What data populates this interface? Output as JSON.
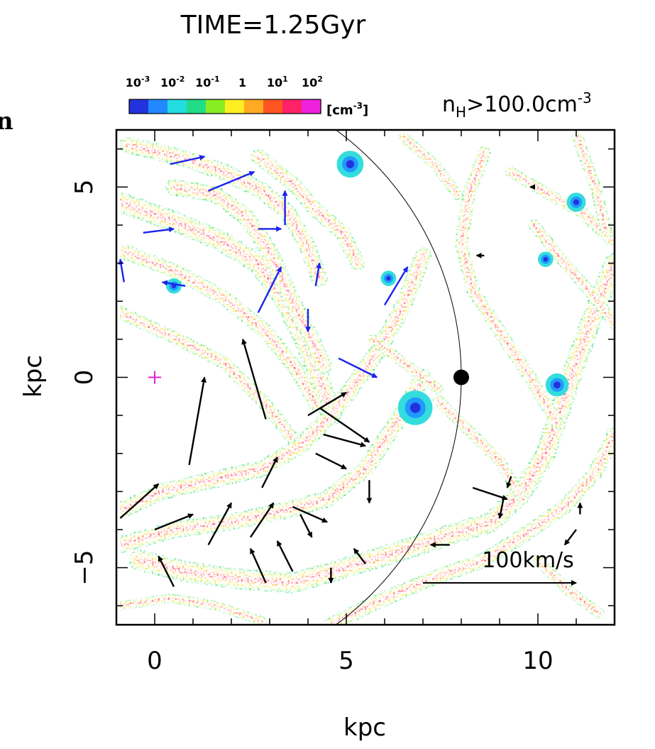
{
  "header": {
    "time_label": "TIME=1.25Gyr",
    "threshold_main": "n",
    "threshold_sub": "H",
    "threshold_rest": ">100.0cm",
    "threshold_sup": "-3",
    "left_edge_mark": "n"
  },
  "colorbar": {
    "unit_label": "[cm",
    "unit_sup": "-3",
    "unit_close": "]",
    "ticks": [
      {
        "value": -3,
        "base": "10",
        "exp": "-3"
      },
      {
        "value": -2,
        "base": "10",
        "exp": "-2"
      },
      {
        "value": -1,
        "base": "10",
        "exp": "-1"
      },
      {
        "value": 0,
        "base": "1",
        "exp": ""
      },
      {
        "value": 1,
        "base": "10",
        "exp": "1"
      },
      {
        "value": 2,
        "base": "10",
        "exp": "2"
      }
    ],
    "colors": [
      "#2233dd",
      "#2288ff",
      "#22dddd",
      "#22dd88",
      "#88ee22",
      "#ffee22",
      "#ffaa22",
      "#ff5522",
      "#ff2266",
      "#ee22dd"
    ]
  },
  "chart_data": {
    "type": "scatter",
    "description_type": "gas density map with velocity vectors",
    "xlabel": "kpc",
    "ylabel": "kpc",
    "xlim": [
      -1,
      12
    ],
    "ylim": [
      -6.5,
      6.5
    ],
    "xticks": [
      0,
      5,
      10
    ],
    "yticks": [
      5,
      0,
      -5
    ],
    "xtick_labels": [
      "0",
      "5",
      "10"
    ],
    "ytick_labels": [
      "5",
      "0",
      "−5"
    ],
    "sun_marker": {
      "x": 8,
      "y": 0
    },
    "solar_circle_radius": 8,
    "plus_marker": {
      "x": 0,
      "y": 0
    },
    "scale_arrow": {
      "label": "100km/s",
      "x0": 7,
      "x1": 11,
      "y": -5.4
    },
    "velocity_arrows": [
      {
        "x": 0.4,
        "y": 5.6,
        "dx": 0.9,
        "dy": 0.2,
        "color": "blue"
      },
      {
        "x": 1.4,
        "y": 4.9,
        "dx": 1.2,
        "dy": 0.5,
        "color": "blue"
      },
      {
        "x": -0.3,
        "y": 3.8,
        "dx": 0.8,
        "dy": 0.1,
        "color": "blue"
      },
      {
        "x": 2.7,
        "y": 3.9,
        "dx": 0.6,
        "dy": 0.0,
        "color": "blue"
      },
      {
        "x": 3.4,
        "y": 4.0,
        "dx": 0.0,
        "dy": 0.9,
        "color": "blue"
      },
      {
        "x": 0.8,
        "y": 2.4,
        "dx": -0.6,
        "dy": 0.1,
        "color": "blue"
      },
      {
        "x": 2.7,
        "y": 1.7,
        "dx": 0.6,
        "dy": 1.2,
        "color": "blue"
      },
      {
        "x": 4.2,
        "y": 2.4,
        "dx": 0.1,
        "dy": 0.6,
        "color": "blue"
      },
      {
        "x": 4.0,
        "y": 1.8,
        "dx": 0.0,
        "dy": -0.6,
        "color": "blue"
      },
      {
        "x": 4.8,
        "y": 0.5,
        "dx": 1.0,
        "dy": -0.5,
        "color": "blue"
      },
      {
        "x": 6.0,
        "y": 1.9,
        "dx": 0.6,
        "dy": 1.0,
        "color": "blue"
      },
      {
        "x": 2.9,
        "y": -1.1,
        "dx": -0.6,
        "dy": 2.1,
        "color": "black"
      },
      {
        "x": 0.9,
        "y": -2.3,
        "dx": 0.4,
        "dy": 2.3,
        "color": "black"
      },
      {
        "x": 4.0,
        "y": -1.0,
        "dx": 1.0,
        "dy": 0.6,
        "color": "black"
      },
      {
        "x": 4.3,
        "y": -0.8,
        "dx": 1.3,
        "dy": -0.9,
        "color": "black"
      },
      {
        "x": 4.4,
        "y": -1.5,
        "dx": 1.1,
        "dy": -0.3,
        "color": "black"
      },
      {
        "x": 4.2,
        "y": -2.0,
        "dx": 0.8,
        "dy": -0.4,
        "color": "black"
      },
      {
        "x": 2.8,
        "y": -2.9,
        "dx": 0.4,
        "dy": 0.8,
        "color": "black"
      },
      {
        "x": -0.9,
        "y": -3.7,
        "dx": 1.0,
        "dy": 0.9,
        "color": "black"
      },
      {
        "x": 0.0,
        "y": -4.0,
        "dx": 1.0,
        "dy": 0.4,
        "color": "black"
      },
      {
        "x": 1.4,
        "y": -4.4,
        "dx": 0.6,
        "dy": 1.1,
        "color": "black"
      },
      {
        "x": 2.5,
        "y": -4.2,
        "dx": 0.6,
        "dy": 0.9,
        "color": "black"
      },
      {
        "x": 3.6,
        "y": -3.4,
        "dx": 0.9,
        "dy": -0.4,
        "color": "black"
      },
      {
        "x": 3.8,
        "y": -3.6,
        "dx": 0.3,
        "dy": -0.6,
        "color": "black"
      },
      {
        "x": 0.5,
        "y": -5.5,
        "dx": -0.4,
        "dy": 0.8,
        "color": "black"
      },
      {
        "x": 2.9,
        "y": -5.4,
        "dx": -0.4,
        "dy": 0.9,
        "color": "black"
      },
      {
        "x": 3.6,
        "y": -5.1,
        "dx": -0.4,
        "dy": 0.8,
        "color": "black"
      },
      {
        "x": 5.6,
        "y": -2.7,
        "dx": 0.0,
        "dy": -0.6,
        "color": "black"
      },
      {
        "x": 8.3,
        "y": -2.9,
        "dx": 0.9,
        "dy": -0.3,
        "color": "black"
      },
      {
        "x": 9.3,
        "y": -2.6,
        "dx": -0.1,
        "dy": -0.3,
        "color": "black"
      },
      {
        "x": 9.1,
        "y": -3.2,
        "dx": -0.1,
        "dy": -0.5,
        "color": "black"
      },
      {
        "x": 7.7,
        "y": -4.4,
        "dx": -0.5,
        "dy": -0.0,
        "color": "black"
      },
      {
        "x": 5.5,
        "y": -4.9,
        "dx": -0.3,
        "dy": 0.4,
        "color": "black"
      },
      {
        "x": 4.6,
        "y": -5.0,
        "dx": 0.0,
        "dy": -0.4,
        "color": "black"
      },
      {
        "x": 11.1,
        "y": -3.6,
        "dx": 0.0,
        "dy": 0.3,
        "color": "black"
      },
      {
        "x": 11.0,
        "y": -4.0,
        "dx": -0.3,
        "dy": -0.4,
        "color": "black"
      },
      {
        "x": 9.9,
        "y": 5.0,
        "dx": -0.1,
        "dy": 0.0,
        "color": "black"
      },
      {
        "x": 8.6,
        "y": 3.2,
        "dx": -0.2,
        "dy": 0.0,
        "color": "black"
      },
      {
        "x": -0.8,
        "y": 2.5,
        "dx": -0.1,
        "dy": 0.6,
        "color": "blue"
      }
    ],
    "filaments": [
      {
        "points": [
          [
            -0.9,
            4.6
          ],
          [
            0.5,
            4.1
          ],
          [
            1.7,
            3.6
          ],
          [
            2.7,
            3.0
          ],
          [
            3.4,
            2.0
          ],
          [
            3.9,
            1.0
          ],
          [
            4.3,
            0.0
          ],
          [
            4.6,
            -1.0
          ]
        ],
        "width": 0.55
      },
      {
        "points": [
          [
            0.5,
            5.0
          ],
          [
            1.6,
            4.8
          ],
          [
            2.4,
            4.2
          ],
          [
            3.0,
            3.3
          ],
          [
            3.5,
            2.2
          ],
          [
            4.0,
            1.2
          ],
          [
            4.4,
            0.3
          ]
        ],
        "width": 0.45
      },
      {
        "points": [
          [
            -0.7,
            6.1
          ],
          [
            0.6,
            5.8
          ],
          [
            1.8,
            5.4
          ],
          [
            2.8,
            4.9
          ],
          [
            3.5,
            4.3
          ],
          [
            4.0,
            3.4
          ],
          [
            4.3,
            2.6
          ]
        ],
        "width": 0.45
      },
      {
        "points": [
          [
            2.7,
            5.8
          ],
          [
            3.6,
            5.1
          ],
          [
            4.2,
            4.4
          ],
          [
            4.9,
            3.8
          ],
          [
            5.3,
            3.0
          ]
        ],
        "width": 0.4
      },
      {
        "points": [
          [
            -0.8,
            3.3
          ],
          [
            0.5,
            2.8
          ],
          [
            1.8,
            2.1
          ],
          [
            2.9,
            1.2
          ],
          [
            3.7,
            0.2
          ],
          [
            4.2,
            -0.7
          ]
        ],
        "width": 0.4
      },
      {
        "points": [
          [
            -0.9,
            1.7
          ],
          [
            0.6,
            1.0
          ],
          [
            1.8,
            0.4
          ],
          [
            2.8,
            -0.6
          ],
          [
            3.6,
            -1.6
          ]
        ],
        "width": 0.35
      },
      {
        "points": [
          [
            -0.9,
            -3.5
          ],
          [
            0.2,
            -3.0
          ],
          [
            1.5,
            -2.7
          ],
          [
            2.8,
            -2.4
          ],
          [
            3.8,
            -1.8
          ],
          [
            4.6,
            -1.0
          ],
          [
            5.2,
            -0.2
          ],
          [
            5.9,
            0.8
          ],
          [
            6.5,
            1.9
          ],
          [
            7.0,
            3.2
          ]
        ],
        "width": 0.45
      },
      {
        "points": [
          [
            -0.9,
            -4.4
          ],
          [
            0.5,
            -4.0
          ],
          [
            2.0,
            -3.8
          ],
          [
            3.4,
            -3.5
          ],
          [
            4.5,
            -3.2
          ],
          [
            5.5,
            -2.4
          ],
          [
            6.3,
            -1.2
          ],
          [
            7.0,
            0.0
          ]
        ],
        "width": 0.45
      },
      {
        "points": [
          [
            -0.4,
            -4.8
          ],
          [
            0.8,
            -5.1
          ],
          [
            2.2,
            -5.3
          ],
          [
            3.6,
            -5.4
          ],
          [
            5.0,
            -5.0
          ],
          [
            6.3,
            -4.6
          ],
          [
            7.5,
            -4.2
          ],
          [
            8.8,
            -3.8
          ],
          [
            9.6,
            -3.0
          ],
          [
            10.2,
            -2.0
          ],
          [
            10.6,
            -0.8
          ],
          [
            11.0,
            0.4
          ],
          [
            11.5,
            1.8
          ],
          [
            12.0,
            3.0
          ]
        ],
        "width": 0.55
      },
      {
        "points": [
          [
            4.6,
            -6.5
          ],
          [
            5.8,
            -5.9
          ],
          [
            7.2,
            -5.3
          ],
          [
            8.6,
            -4.8
          ],
          [
            9.7,
            -4.1
          ],
          [
            10.7,
            -3.4
          ],
          [
            11.5,
            -2.5
          ],
          [
            12.0,
            -1.5
          ]
        ],
        "width": 0.4
      },
      {
        "points": [
          [
            7.4,
            -0.6
          ],
          [
            8.2,
            -1.4
          ],
          [
            9.0,
            -2.2
          ],
          [
            9.6,
            -3.2
          ]
        ],
        "width": 0.3
      },
      {
        "points": [
          [
            8.6,
            5.9
          ],
          [
            8.2,
            4.8
          ],
          [
            8.0,
            3.5
          ],
          [
            8.3,
            2.3
          ],
          [
            9.0,
            1.2
          ],
          [
            9.8,
            0.0
          ],
          [
            10.5,
            -1.2
          ]
        ],
        "width": 0.35
      },
      {
        "points": [
          [
            9.3,
            5.4
          ],
          [
            10.3,
            4.8
          ],
          [
            11.2,
            4.3
          ],
          [
            11.9,
            3.6
          ]
        ],
        "width": 0.3
      },
      {
        "points": [
          [
            9.9,
            4.0
          ],
          [
            10.7,
            3.0
          ],
          [
            11.4,
            2.2
          ],
          [
            12.0,
            1.4
          ]
        ],
        "width": 0.3
      },
      {
        "points": [
          [
            11.0,
            6.4
          ],
          [
            11.5,
            5.0
          ],
          [
            11.8,
            3.8
          ]
        ],
        "width": 0.3
      },
      {
        "points": [
          [
            6.5,
            6.3
          ],
          [
            7.3,
            5.6
          ],
          [
            7.9,
            4.8
          ]
        ],
        "width": 0.28
      },
      {
        "points": [
          [
            -0.9,
            -6.0
          ],
          [
            0.4,
            -5.8
          ],
          [
            1.6,
            -6.0
          ],
          [
            2.8,
            -6.4
          ]
        ],
        "width": 0.25
      },
      {
        "points": [
          [
            5.7,
            1.0
          ],
          [
            6.6,
            0.3
          ],
          [
            7.4,
            -0.3
          ]
        ],
        "width": 0.28
      },
      {
        "points": [
          [
            10.0,
            -4.8
          ],
          [
            10.8,
            -5.6
          ],
          [
            11.6,
            -6.2
          ]
        ],
        "width": 0.28
      }
    ],
    "low_density_clumps": [
      {
        "x": 5.1,
        "y": 5.6,
        "r": 0.35
      },
      {
        "x": 6.8,
        "y": -0.8,
        "r": 0.45
      },
      {
        "x": 10.5,
        "y": -0.2,
        "r": 0.3
      },
      {
        "x": 11.0,
        "y": 4.6,
        "r": 0.25
      },
      {
        "x": 6.1,
        "y": 2.6,
        "r": 0.2
      },
      {
        "x": 10.2,
        "y": 3.1,
        "r": 0.2
      },
      {
        "x": 0.5,
        "y": 2.4,
        "r": 0.2
      }
    ]
  }
}
